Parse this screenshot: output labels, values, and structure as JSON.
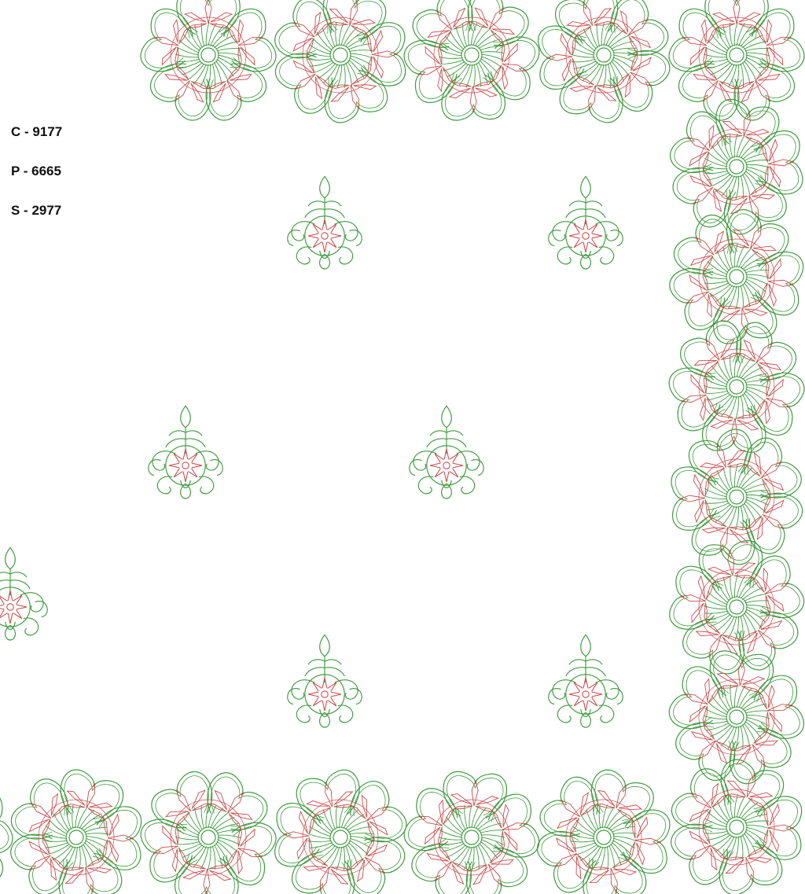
{
  "design": {
    "thread_colors": {
      "outline": "#3f9a3f",
      "accent": "#cc4a4a"
    },
    "motifs": [
      "flower-border",
      "buta"
    ]
  },
  "stats": [
    {
      "text": "C - 9177"
    },
    {
      "text": "P - 6665"
    },
    {
      "text": "S - 2977"
    }
  ]
}
